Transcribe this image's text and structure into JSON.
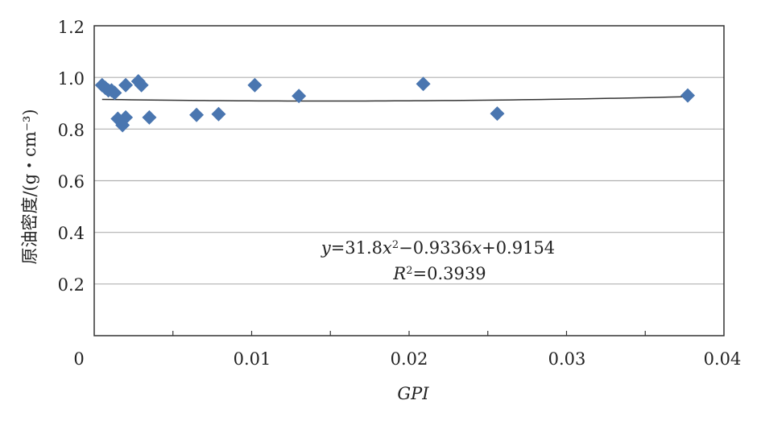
{
  "chart_data": {
    "type": "scatter",
    "xlabel": "GPI",
    "ylabel": "原油密度/(g・cm⁻³)",
    "xlim": [
      0,
      0.04
    ],
    "ylim": [
      0,
      1.2
    ],
    "x_ticks": [
      "0",
      "0.01",
      "0.02",
      "0.03",
      "0.04"
    ],
    "y_ticks": [
      "0.2",
      "0.4",
      "0.6",
      "0.8",
      "1.0",
      "1.2"
    ],
    "grid": "horizontal",
    "marker": "diamond",
    "marker_color": "#4a76b0",
    "points": [
      {
        "x": 0.0005,
        "y": 0.97
      },
      {
        "x": 0.0007,
        "y": 0.96
      },
      {
        "x": 0.0009,
        "y": 0.95
      },
      {
        "x": 0.0011,
        "y": 0.95
      },
      {
        "x": 0.0013,
        "y": 0.94
      },
      {
        "x": 0.0015,
        "y": 0.84
      },
      {
        "x": 0.0018,
        "y": 0.815
      },
      {
        "x": 0.002,
        "y": 0.845
      },
      {
        "x": 0.002,
        "y": 0.97
      },
      {
        "x": 0.0028,
        "y": 0.985
      },
      {
        "x": 0.003,
        "y": 0.97
      },
      {
        "x": 0.0035,
        "y": 0.845
      },
      {
        "x": 0.0065,
        "y": 0.855
      },
      {
        "x": 0.0079,
        "y": 0.858
      },
      {
        "x": 0.0102,
        "y": 0.97
      },
      {
        "x": 0.013,
        "y": 0.928
      },
      {
        "x": 0.0209,
        "y": 0.975
      },
      {
        "x": 0.0256,
        "y": 0.86
      },
      {
        "x": 0.0377,
        "y": 0.93
      }
    ],
    "trendline": {
      "type": "polynomial",
      "a": 31.8,
      "b": -0.9336,
      "c": 0.9154,
      "color": "#333333"
    },
    "equation": {
      "y": "y",
      "eq_part": "=31.8",
      "x1": "x",
      "sup1": "2",
      "minus_part": "−0.9336",
      "x2": "x",
      "plus_part": "+0.9154",
      "r": "R",
      "sup2": "2",
      "r_value": "=0.3939"
    }
  }
}
